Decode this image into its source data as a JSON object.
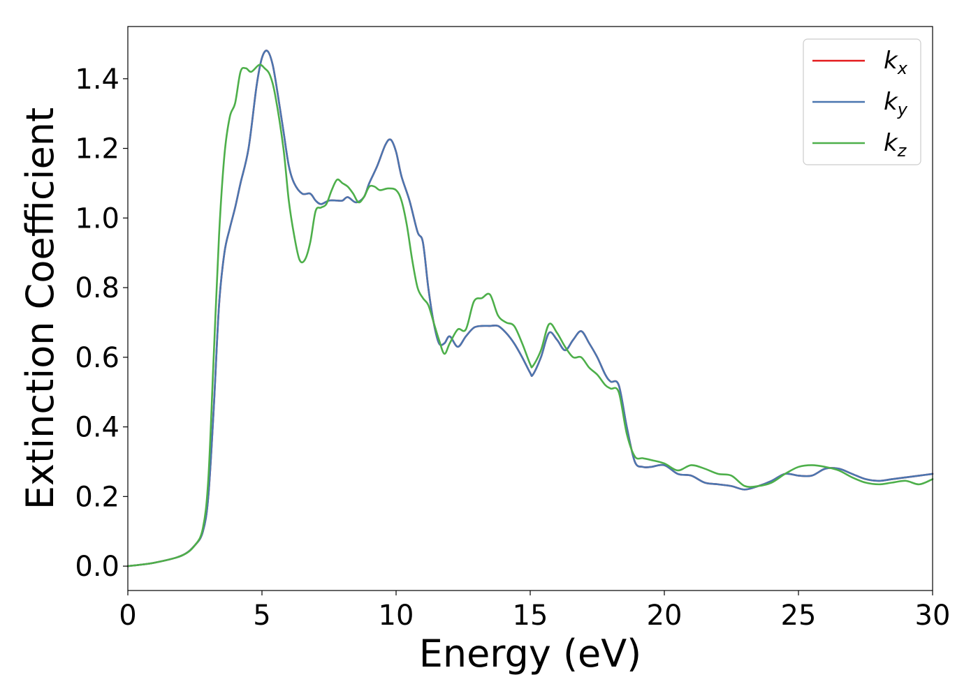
{
  "chart_data": {
    "type": "line",
    "xlabel": "Energy (eV)",
    "ylabel": "Extinction Coefficient",
    "xlim": [
      0,
      30
    ],
    "ylim": [
      -0.07,
      1.55
    ],
    "xticks": [
      0,
      5,
      10,
      15,
      20,
      25,
      30
    ],
    "xtick_labels": [
      "0",
      "5",
      "10",
      "15",
      "20",
      "25",
      "30"
    ],
    "yticks": [
      0.0,
      0.2,
      0.4,
      0.6,
      0.8,
      1.0,
      1.2,
      1.4
    ],
    "ytick_labels": [
      "0.0",
      "0.2",
      "0.4",
      "0.6",
      "0.8",
      "1.0",
      "1.2",
      "1.4"
    ],
    "grid": false,
    "legend_position": "top-right",
    "series": [
      {
        "name": "k_x",
        "label_base": "k",
        "label_sub": "x",
        "color": "#e41a1c",
        "x": [
          0,
          1,
          2,
          2.5,
          2.8,
          3.0,
          3.2,
          3.4,
          3.6,
          3.8,
          4.0,
          4.2,
          4.5,
          4.8,
          5.0,
          5.2,
          5.4,
          5.6,
          5.8,
          6.0,
          6.2,
          6.5,
          6.8,
          7.0,
          7.2,
          7.5,
          7.8,
          8.0,
          8.2,
          8.5,
          8.8,
          9.0,
          9.3,
          9.6,
          9.8,
          10.0,
          10.2,
          10.5,
          10.8,
          11.0,
          11.2,
          11.4,
          11.6,
          11.8,
          12.0,
          12.3,
          12.6,
          12.9,
          13.2,
          13.5,
          13.8,
          14.1,
          14.4,
          14.7,
          15.0,
          15.1,
          15.4,
          15.7,
          16.0,
          16.3,
          16.6,
          16.9,
          17.2,
          17.5,
          17.8,
          18.0,
          18.3,
          18.6,
          18.9,
          19.2,
          19.5,
          20.0,
          20.5,
          21.0,
          21.5,
          22.0,
          22.5,
          23.0,
          23.5,
          24.0,
          24.5,
          25.0,
          25.5,
          26.0,
          26.5,
          27.0,
          27.5,
          28.0,
          28.5,
          29.0,
          29.5,
          30.0
        ],
        "y": [
          0.0,
          0.01,
          0.03,
          0.06,
          0.1,
          0.2,
          0.45,
          0.75,
          0.9,
          0.97,
          1.03,
          1.1,
          1.2,
          1.38,
          1.46,
          1.48,
          1.44,
          1.35,
          1.25,
          1.15,
          1.1,
          1.07,
          1.07,
          1.05,
          1.04,
          1.05,
          1.05,
          1.05,
          1.06,
          1.045,
          1.06,
          1.1,
          1.15,
          1.21,
          1.225,
          1.19,
          1.12,
          1.05,
          0.96,
          0.93,
          0.8,
          0.7,
          0.64,
          0.64,
          0.66,
          0.63,
          0.66,
          0.685,
          0.69,
          0.69,
          0.69,
          0.67,
          0.64,
          0.6,
          0.555,
          0.55,
          0.6,
          0.67,
          0.65,
          0.62,
          0.65,
          0.675,
          0.64,
          0.6,
          0.55,
          0.53,
          0.52,
          0.4,
          0.3,
          0.285,
          0.285,
          0.29,
          0.265,
          0.26,
          0.24,
          0.235,
          0.23,
          0.22,
          0.23,
          0.245,
          0.265,
          0.26,
          0.26,
          0.28,
          0.28,
          0.265,
          0.25,
          0.245,
          0.25,
          0.255,
          0.26,
          0.265
        ]
      },
      {
        "name": "k_y",
        "label_base": "k",
        "label_sub": "y",
        "color": "#4a76b0",
        "x": [
          0,
          1,
          2,
          2.5,
          2.8,
          3.0,
          3.2,
          3.4,
          3.6,
          3.8,
          4.0,
          4.2,
          4.5,
          4.8,
          5.0,
          5.2,
          5.4,
          5.6,
          5.8,
          6.0,
          6.2,
          6.5,
          6.8,
          7.0,
          7.2,
          7.5,
          7.8,
          8.0,
          8.2,
          8.5,
          8.8,
          9.0,
          9.3,
          9.6,
          9.8,
          10.0,
          10.2,
          10.5,
          10.8,
          11.0,
          11.2,
          11.4,
          11.6,
          11.8,
          12.0,
          12.3,
          12.6,
          12.9,
          13.2,
          13.5,
          13.8,
          14.1,
          14.4,
          14.7,
          15.0,
          15.1,
          15.4,
          15.7,
          16.0,
          16.3,
          16.6,
          16.9,
          17.2,
          17.5,
          17.8,
          18.0,
          18.3,
          18.6,
          18.9,
          19.2,
          19.5,
          20.0,
          20.5,
          21.0,
          21.5,
          22.0,
          22.5,
          23.0,
          23.5,
          24.0,
          24.5,
          25.0,
          25.5,
          26.0,
          26.5,
          27.0,
          27.5,
          28.0,
          28.5,
          29.0,
          29.5,
          30.0
        ],
        "y": [
          0.0,
          0.01,
          0.03,
          0.06,
          0.1,
          0.2,
          0.45,
          0.75,
          0.9,
          0.97,
          1.03,
          1.1,
          1.2,
          1.38,
          1.46,
          1.48,
          1.44,
          1.35,
          1.25,
          1.15,
          1.1,
          1.07,
          1.07,
          1.05,
          1.04,
          1.05,
          1.05,
          1.05,
          1.06,
          1.045,
          1.06,
          1.1,
          1.15,
          1.21,
          1.225,
          1.19,
          1.12,
          1.05,
          0.96,
          0.93,
          0.8,
          0.7,
          0.64,
          0.64,
          0.66,
          0.63,
          0.66,
          0.685,
          0.69,
          0.69,
          0.69,
          0.67,
          0.64,
          0.6,
          0.555,
          0.55,
          0.6,
          0.67,
          0.65,
          0.62,
          0.65,
          0.675,
          0.64,
          0.6,
          0.55,
          0.53,
          0.52,
          0.4,
          0.3,
          0.285,
          0.285,
          0.29,
          0.265,
          0.26,
          0.24,
          0.235,
          0.23,
          0.22,
          0.23,
          0.245,
          0.265,
          0.26,
          0.26,
          0.28,
          0.28,
          0.265,
          0.25,
          0.245,
          0.25,
          0.255,
          0.26,
          0.265
        ]
      },
      {
        "name": "k_z",
        "label_base": "k",
        "label_sub": "z",
        "color": "#4daf4a",
        "x": [
          0,
          1,
          2,
          2.5,
          2.8,
          3.0,
          3.2,
          3.4,
          3.6,
          3.8,
          4.0,
          4.2,
          4.4,
          4.6,
          4.9,
          5.1,
          5.3,
          5.5,
          5.8,
          6.0,
          6.2,
          6.4,
          6.6,
          6.8,
          7.0,
          7.2,
          7.4,
          7.6,
          7.8,
          8.0,
          8.2,
          8.4,
          8.6,
          8.8,
          9.0,
          9.2,
          9.4,
          9.7,
          10.0,
          10.2,
          10.4,
          10.6,
          10.8,
          11.0,
          11.2,
          11.4,
          11.6,
          11.8,
          12.0,
          12.3,
          12.6,
          12.9,
          13.2,
          13.5,
          13.8,
          14.1,
          14.4,
          14.7,
          15.0,
          15.1,
          15.4,
          15.7,
          16.0,
          16.3,
          16.6,
          16.9,
          17.2,
          17.5,
          17.8,
          18.0,
          18.3,
          18.6,
          18.9,
          19.2,
          19.5,
          20.0,
          20.5,
          21.0,
          21.5,
          22.0,
          22.5,
          23.0,
          23.5,
          24.0,
          24.5,
          25.0,
          25.5,
          26.0,
          26.5,
          27.0,
          27.5,
          28.0,
          28.5,
          29.0,
          29.5,
          30.0
        ],
        "y": [
          0.0,
          0.01,
          0.03,
          0.06,
          0.11,
          0.25,
          0.6,
          0.95,
          1.18,
          1.29,
          1.33,
          1.42,
          1.43,
          1.42,
          1.44,
          1.43,
          1.41,
          1.35,
          1.2,
          1.05,
          0.95,
          0.88,
          0.88,
          0.93,
          1.02,
          1.03,
          1.04,
          1.08,
          1.11,
          1.1,
          1.09,
          1.07,
          1.045,
          1.06,
          1.09,
          1.09,
          1.08,
          1.085,
          1.08,
          1.05,
          0.98,
          0.88,
          0.8,
          0.77,
          0.75,
          0.7,
          0.65,
          0.61,
          0.64,
          0.68,
          0.68,
          0.76,
          0.77,
          0.78,
          0.72,
          0.7,
          0.69,
          0.64,
          0.58,
          0.575,
          0.62,
          0.695,
          0.67,
          0.63,
          0.6,
          0.6,
          0.57,
          0.55,
          0.52,
          0.51,
          0.5,
          0.38,
          0.315,
          0.31,
          0.305,
          0.295,
          0.275,
          0.29,
          0.28,
          0.265,
          0.26,
          0.23,
          0.23,
          0.24,
          0.265,
          0.285,
          0.29,
          0.285,
          0.275,
          0.255,
          0.24,
          0.235,
          0.24,
          0.245,
          0.235,
          0.25
        ]
      }
    ]
  }
}
